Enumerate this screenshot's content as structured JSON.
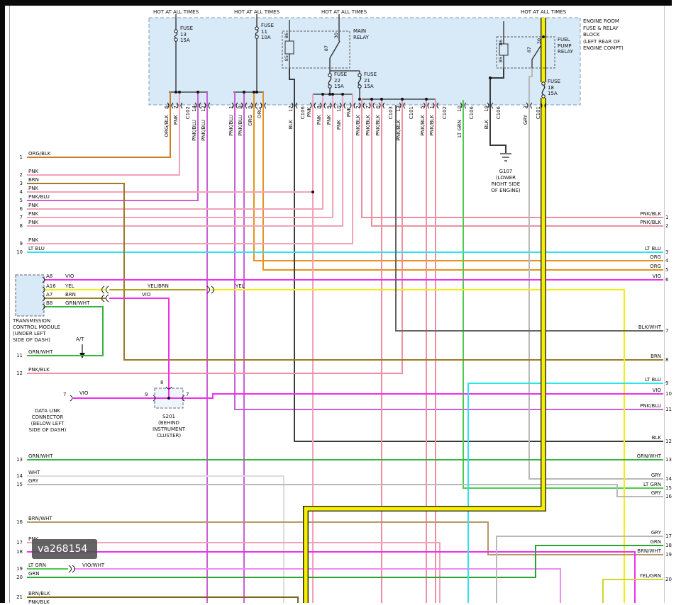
{
  "watermark": "va268154",
  "colors": {
    "PNK": "#f2a3b8",
    "PNK/BLU": "#cb5fd6",
    "PNK/BLK": "#ee8fa2",
    "ORG": "#e8921c",
    "ORG/BLK": "#d07b1f",
    "BRN": "#9b7b23",
    "BRN/WHT": "#b49a67",
    "BRN/BLK": "#7c6418",
    "LT BLU": "#2fe3ec",
    "VIO": "#ef2fee",
    "VIO/WHT": "#f08cf0",
    "YEL": "#f1ee0e",
    "YEL/BRN": "#b2a011",
    "YEL/GRN": "#ccd926",
    "GRN": "#27a52c",
    "LT GRN": "#4ecb4e",
    "GRN/WHT": "#36b43c",
    "GRY": "#b9b9b9",
    "WHT": "#dcdcdc",
    "BLK": "#3a3a3a",
    "BLK/WHT": "#666666",
    "bus_yellow": "#f6ef00",
    "box_fill": "#d8e9f8"
  },
  "hot_labels": [
    "HOT AT ALL TIMES",
    "HOT AT ALL TIMES",
    "HOT AT ALL TIMES",
    "HOT AT ALL TIMES"
  ],
  "block_note": [
    "ENGINE ROOM",
    "FUSE & RELAY",
    "BLOCK",
    "(LEFT REAR OF",
    "ENGINE COMPT)"
  ],
  "fuses": [
    {
      "lines": [
        "FUSE",
        "13",
        "15A"
      ]
    },
    {
      "lines": [
        "FUSE",
        "11",
        "10A"
      ]
    },
    {
      "lines": [
        "FUSE",
        "22",
        "15A"
      ]
    },
    {
      "lines": [
        "FUSE",
        "21",
        "15A"
      ]
    },
    {
      "lines": [
        "FUSE",
        "18",
        "15A"
      ]
    }
  ],
  "relays": [
    {
      "lines": [
        "MAIN",
        "RELAY"
      ],
      "pins": [
        "86",
        "85",
        "87",
        "30"
      ]
    },
    {
      "lines": [
        "FUEL",
        "PUMP",
        "RELAY"
      ],
      "pins": [
        "86",
        "85",
        "87",
        "30"
      ]
    }
  ],
  "verticals": [
    {
      "label": "ORG/BLK",
      "pin": "6"
    },
    {
      "label": "PNK",
      "pin": "7"
    },
    {
      "label": "C102",
      "connector": true
    },
    {
      "label": "PNK/BLU",
      "pin": "14"
    },
    {
      "label": "PNK/BLU",
      "pin": "12"
    },
    {
      "label": "PNK/BLU",
      "pin": "1"
    },
    {
      "label": "PNK/BLU",
      "pin": "8"
    },
    {
      "label": "ORG",
      "pin": "9"
    },
    {
      "label": "ORG"
    },
    {
      "label": "BLK",
      "pin": "17"
    },
    {
      "label": "C106",
      "connector": true
    },
    {
      "label": "PNK"
    },
    {
      "label": "PNK",
      "pin": "8"
    },
    {
      "label": "PNK",
      "pin": "9"
    },
    {
      "label": "PNK",
      "pin": "10"
    },
    {
      "label": "PNK"
    },
    {
      "label": "PNK/BLK",
      "pin": "2"
    },
    {
      "label": "PNK/BLK",
      "pin": "7"
    },
    {
      "label": "PNK/BLK",
      "pin": "6"
    },
    {
      "label": "C103",
      "connector": true
    },
    {
      "label": "PNK/BLK",
      "pin": "13"
    },
    {
      "label": "C101",
      "connector": true
    },
    {
      "label": "PNK/BLK",
      "pin": "5"
    },
    {
      "label": "PNK/BLK",
      "pin": "1"
    },
    {
      "label": "C102",
      "connector": true
    },
    {
      "label": "LT GRN",
      "pin": "10"
    },
    {
      "label": "C106",
      "connector": true
    },
    {
      "label": "BLK",
      "pin": "19"
    },
    {
      "label": "C106",
      "connector": true
    },
    {
      "label": "GRY",
      "pin": "3"
    },
    {
      "label": "C101",
      "connector": true
    }
  ],
  "left_rows": [
    {
      "num": "1",
      "label": "ORG/BLK"
    },
    {
      "num": "2",
      "label": "PNK"
    },
    {
      "num": "3",
      "label": "BRN"
    },
    {
      "num": "4",
      "label": "PNK"
    },
    {
      "num": "5",
      "label": "PNK/BLU"
    },
    {
      "num": "6",
      "label": "PNK"
    },
    {
      "num": "7",
      "label": "PNK"
    },
    {
      "num": "8",
      "label": "PNK"
    },
    {
      "num": "9",
      "label": "PNK"
    },
    {
      "num": "10",
      "label": "LT BLU"
    },
    {
      "num": "11",
      "label": "GRN/WHT"
    },
    {
      "num": "12",
      "label": "PNK/BLK"
    },
    {
      "num": "13",
      "label": "GRN/WHT"
    },
    {
      "num": "14",
      "label": "WHT"
    },
    {
      "num": "15",
      "label": "GRY"
    },
    {
      "num": "16",
      "label": "BRN/WHT"
    },
    {
      "num": "17",
      "label": "PNK"
    },
    {
      "num": "18",
      "label": ""
    },
    {
      "num": "19",
      "label": "LT GRN"
    },
    {
      "num": "20",
      "label": "GRN"
    },
    {
      "num": "21",
      "label": "BRN/BLK"
    }
  ],
  "left_partial_label": "PNK/BLK",
  "right_rows": [
    {
      "num": "1",
      "label": "PNK/BLK"
    },
    {
      "num": "2",
      "label": "PNK/BLK"
    },
    {
      "num": "3",
      "label": "LT BLU"
    },
    {
      "num": "4",
      "label": "ORG"
    },
    {
      "num": "5",
      "label": "ORG"
    },
    {
      "num": "6",
      "label": "VIO"
    },
    {
      "num": "7",
      "label": "BLK/WHT"
    },
    {
      "num": "8",
      "label": "BRN"
    },
    {
      "num": "9",
      "label": "LT BLU"
    },
    {
      "num": "10",
      "label": "VIO"
    },
    {
      "num": "11",
      "label": "PNK/BLU"
    },
    {
      "num": "12",
      "label": "BLK"
    },
    {
      "num": "13",
      "label": "GRN/WHT"
    },
    {
      "num": "14",
      "label": "GRY"
    },
    {
      "num": "15",
      "label": "LT GRN"
    },
    {
      "num": "16",
      "label": "GRY"
    },
    {
      "num": "17",
      "label": "GRY"
    },
    {
      "num": "18",
      "label": "GRN"
    },
    {
      "num": "19",
      "label": "BRN/WHT"
    },
    {
      "num": "20",
      "label": "YEL/GRN"
    }
  ],
  "tcm": {
    "pins": [
      {
        "pin": "A8",
        "wire": "VIO"
      },
      {
        "pin": "A16",
        "wire": "YEL"
      },
      {
        "pin": "A7",
        "wire": "BRN"
      },
      {
        "pin": "B8",
        "wire": "GRN/WHT"
      }
    ],
    "caption": [
      "TRANSMISSION",
      "CONTROL MODULE",
      "(UNDER LEFT",
      "SIDE OF DASH)"
    ],
    "at_label": "A/T"
  },
  "dlc": {
    "pin": "7",
    "wire": "VIO",
    "caption": [
      "DATA LINK",
      "CONNECTOR",
      "(BELOW LEFT",
      "SIDE OF DASH)"
    ]
  },
  "s201": {
    "pin_top": "8",
    "pin_left": "9",
    "pin_right": "7",
    "caption": [
      "S201",
      "(BEHIND",
      "INSTRUMENT",
      "CLUSTER)"
    ]
  },
  "g107": {
    "caption": [
      "G107",
      "(LOWER",
      "RIGHT SIDE",
      "OF ENGINE)"
    ]
  },
  "inline": {
    "yel_brn": "YEL/BRN",
    "yel": "YEL",
    "vio": "VIO",
    "vio_wht": "VIO/WHT"
  }
}
